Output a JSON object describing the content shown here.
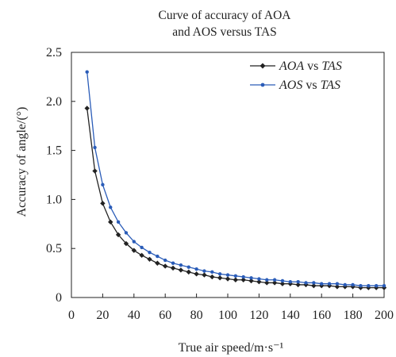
{
  "chart_data": {
    "type": "line",
    "title_lines": [
      "Curve of accuracy of AOA",
      "and AOS versus TAS"
    ],
    "xlabel": "True air speed/m·s⁻¹",
    "ylabel": "Accuracy of angle/(°)",
    "xlim": [
      0,
      200
    ],
    "ylim": [
      0,
      2.5
    ],
    "xticks": [
      0,
      20,
      40,
      60,
      80,
      100,
      120,
      140,
      160,
      180,
      200
    ],
    "yticks": [
      0,
      0.5,
      1.0,
      1.5,
      2.0,
      2.5
    ],
    "ytick_labels": [
      "0",
      "0.5",
      "1.0",
      "1.5",
      "2.0",
      "2.5"
    ],
    "legend_position": "top-right",
    "grid": false,
    "x": [
      10,
      15,
      20,
      25,
      30,
      35,
      40,
      45,
      50,
      55,
      60,
      65,
      70,
      75,
      80,
      85,
      90,
      95,
      100,
      105,
      110,
      115,
      120,
      125,
      130,
      135,
      140,
      145,
      150,
      155,
      160,
      165,
      170,
      175,
      180,
      185,
      190,
      195,
      200
    ],
    "series": [
      {
        "name": "AOA vs TAS",
        "legend_italic": "AOA",
        "legend_mid": " vs ",
        "legend_italic2": "TAS",
        "color": "#222222",
        "marker": "diamond",
        "values": [
          1.93,
          1.29,
          0.96,
          0.77,
          0.64,
          0.55,
          0.48,
          0.43,
          0.39,
          0.35,
          0.32,
          0.3,
          0.28,
          0.26,
          0.24,
          0.23,
          0.21,
          0.2,
          0.19,
          0.18,
          0.18,
          0.17,
          0.16,
          0.15,
          0.15,
          0.14,
          0.14,
          0.13,
          0.13,
          0.12,
          0.12,
          0.12,
          0.11,
          0.11,
          0.11,
          0.1,
          0.1,
          0.1,
          0.1
        ]
      },
      {
        "name": "AOS vs TAS",
        "legend_italic": "AOS",
        "legend_mid": " vs ",
        "legend_italic2": "TAS",
        "color": "#2a5cb8",
        "marker": "circle",
        "values": [
          2.3,
          1.53,
          1.15,
          0.92,
          0.77,
          0.66,
          0.57,
          0.51,
          0.46,
          0.42,
          0.38,
          0.35,
          0.33,
          0.31,
          0.29,
          0.27,
          0.26,
          0.24,
          0.23,
          0.22,
          0.21,
          0.2,
          0.19,
          0.18,
          0.18,
          0.17,
          0.16,
          0.16,
          0.15,
          0.15,
          0.14,
          0.14,
          0.14,
          0.13,
          0.13,
          0.12,
          0.12,
          0.12,
          0.12
        ]
      }
    ]
  }
}
